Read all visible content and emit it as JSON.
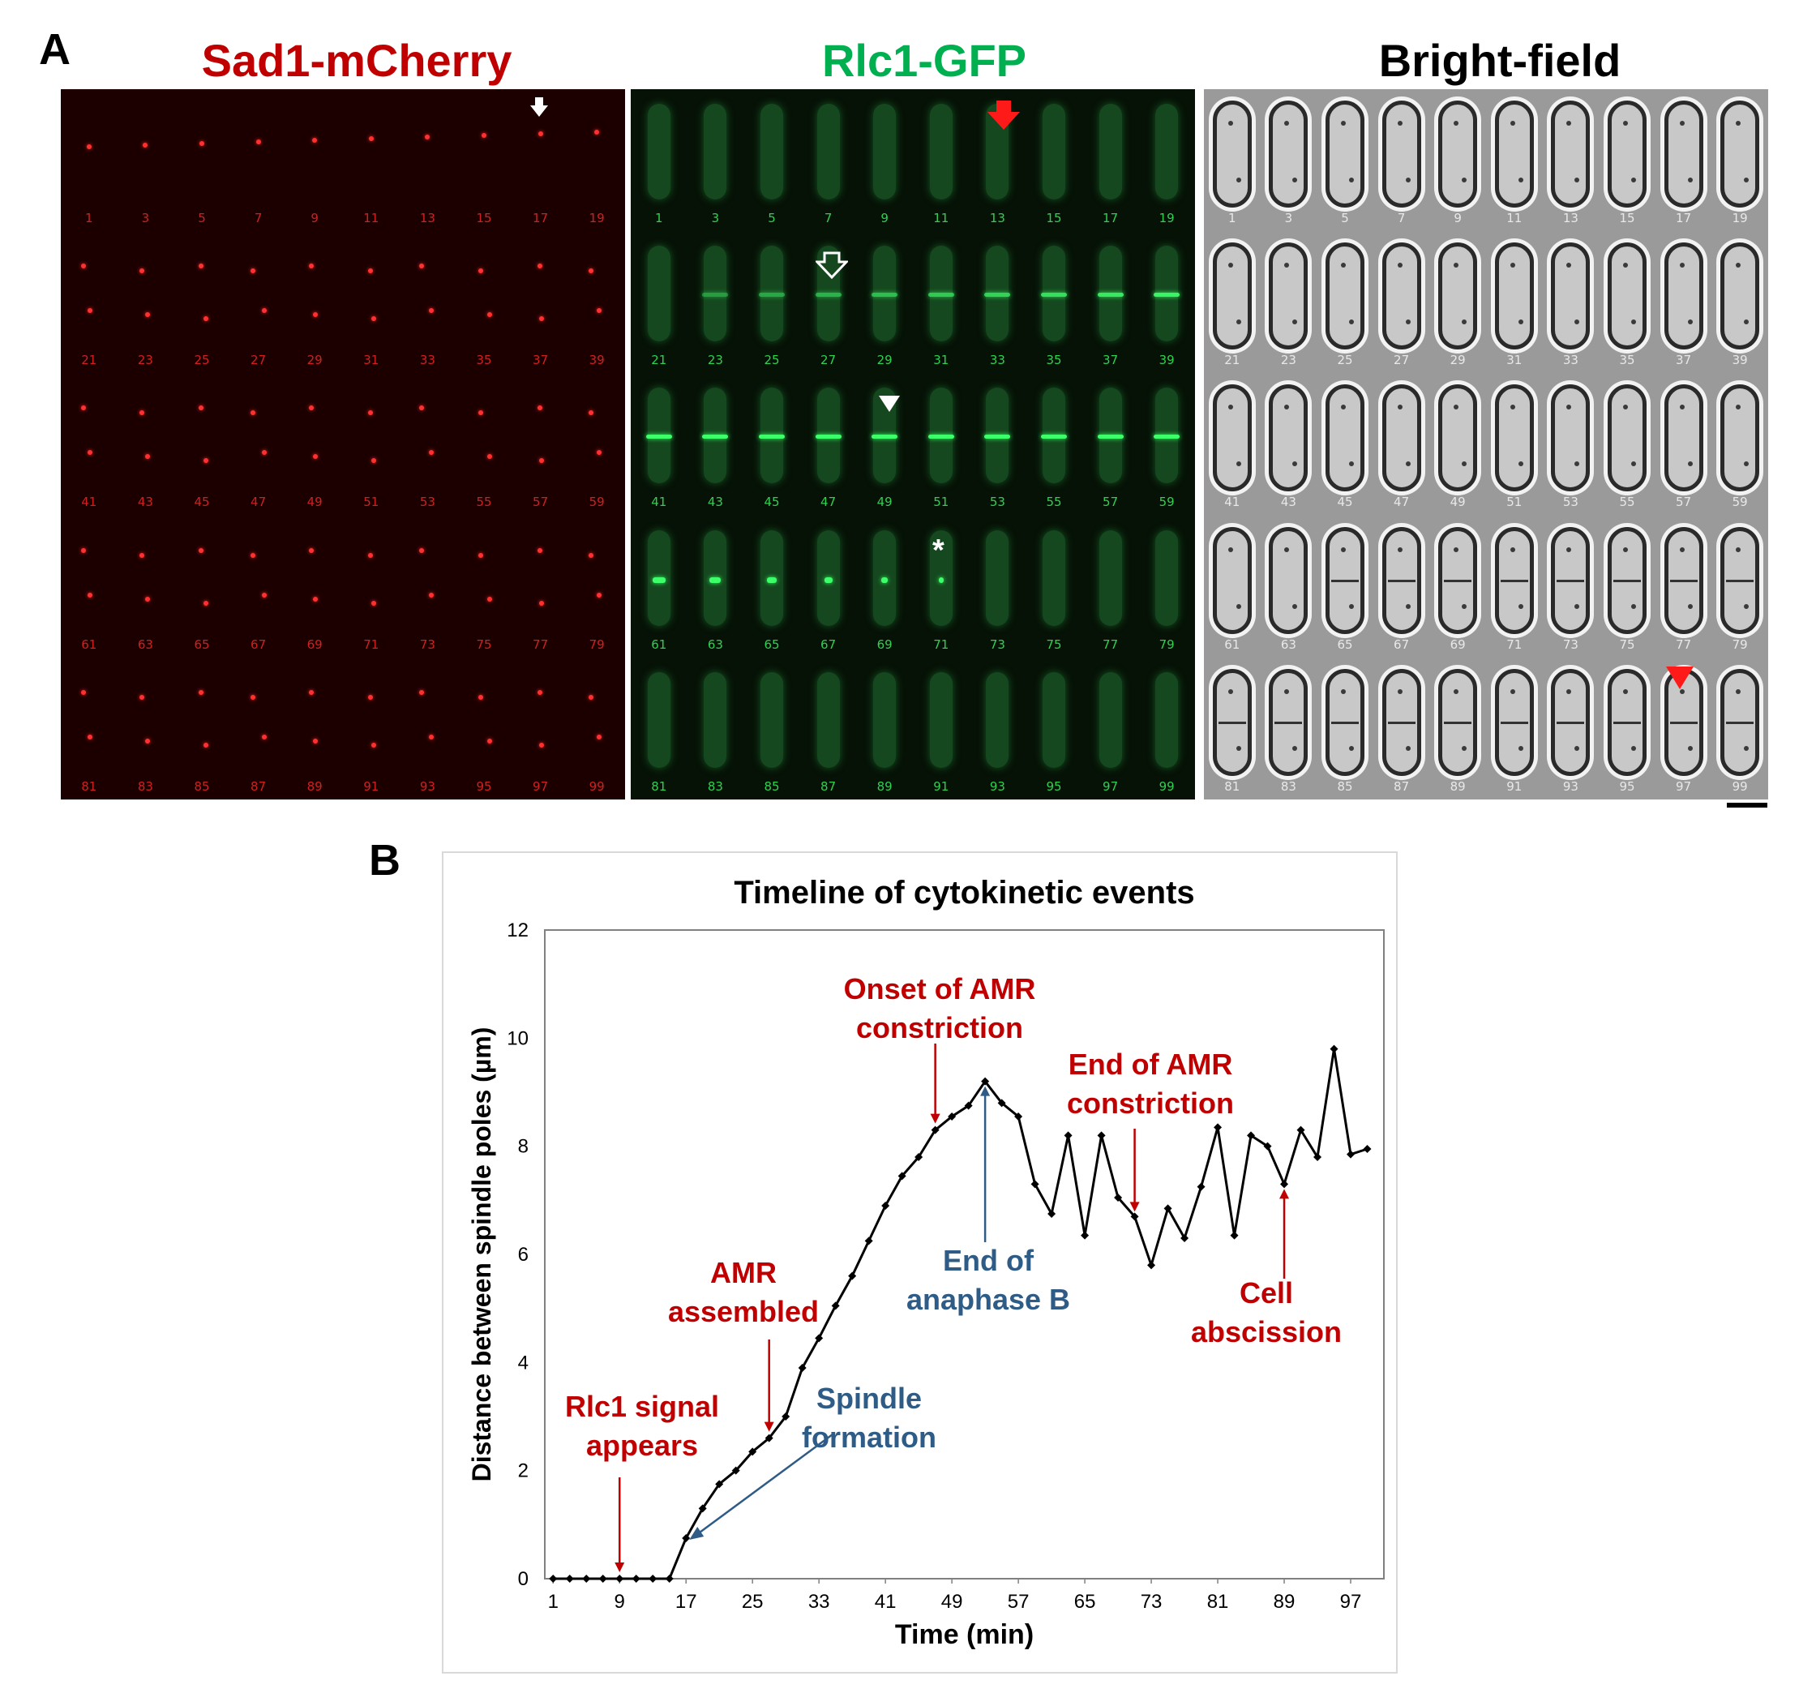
{
  "figure": {
    "panel_a_label": "A",
    "panel_b_label": "B"
  },
  "panel_a": {
    "columns": [
      {
        "title": "Sad1-mCherry",
        "color": "#c00000"
      },
      {
        "title": "Rlc1-GFP",
        "color": "#00b050"
      },
      {
        "title": "Bright-field",
        "color": "#000000"
      }
    ],
    "frame_numbers": [
      [
        "1",
        "3",
        "5",
        "7",
        "9",
        "11",
        "13",
        "15",
        "17",
        "19"
      ],
      [
        "21",
        "23",
        "25",
        "27",
        "29",
        "31",
        "33",
        "35",
        "37",
        "39"
      ],
      [
        "41",
        "43",
        "45",
        "47",
        "49",
        "51",
        "53",
        "55",
        "57",
        "59"
      ],
      [
        "61",
        "63",
        "65",
        "67",
        "69",
        "71",
        "73",
        "75",
        "77",
        "79"
      ],
      [
        "81",
        "83",
        "85",
        "87",
        "89",
        "91",
        "93",
        "95",
        "97",
        "99"
      ]
    ],
    "annotations": {
      "gfp_asterisk": "*"
    }
  },
  "chart_data": {
    "type": "line",
    "title": "Timeline of cytokinetic events",
    "xlabel": "Time (min)",
    "ylabel": "Distance between spindle poles (µm)",
    "ylim": [
      0,
      12
    ],
    "yticks": [
      "0",
      "2",
      "4",
      "6",
      "8",
      "10",
      "12"
    ],
    "xticks": [
      "1",
      "9",
      "17",
      "25",
      "33",
      "41",
      "49",
      "57",
      "65",
      "73",
      "81",
      "89",
      "97"
    ],
    "grid": false,
    "series": [
      {
        "name": "Distance between spindle poles",
        "x": [
          1,
          3,
          5,
          7,
          9,
          11,
          13,
          15,
          17,
          19,
          21,
          23,
          25,
          27,
          29,
          31,
          33,
          35,
          37,
          39,
          41,
          43,
          45,
          47,
          49,
          51,
          53,
          55,
          57,
          59,
          61,
          63,
          65,
          67,
          69,
          71,
          73,
          75,
          77,
          79,
          81,
          83,
          85,
          87,
          89,
          91,
          93,
          95,
          97,
          99
        ],
        "values": [
          0,
          0,
          0,
          0,
          0,
          0,
          0,
          0,
          0.75,
          1.3,
          1.75,
          2.0,
          2.35,
          2.6,
          3.0,
          3.9,
          4.45,
          5.05,
          5.6,
          6.25,
          6.9,
          7.45,
          7.8,
          8.3,
          8.55,
          8.75,
          9.2,
          8.8,
          8.55,
          7.3,
          6.75,
          8.2,
          6.35,
          8.2,
          7.05,
          6.7,
          5.8,
          6.85,
          6.3,
          7.25,
          8.35,
          6.35,
          8.2,
          8.0,
          7.3,
          8.3,
          7.8,
          9.8,
          7.85,
          7.95
        ]
      }
    ],
    "event_annotations": [
      {
        "label": "Rlc1 signal appears",
        "line1": "Rlc1 signal",
        "line2": "appears",
        "x": 9,
        "color": "#c00000"
      },
      {
        "label": "AMR assembled",
        "line1": "AMR",
        "line2": "assembled",
        "x": 27,
        "color": "#c00000"
      },
      {
        "label": "Onset of AMR constriction",
        "line1": "Onset of AMR",
        "line2": "constriction",
        "x": 47,
        "color": "#c00000"
      },
      {
        "label": "End of AMR constriction",
        "line1": "End of AMR",
        "line2": "constriction",
        "x": 71,
        "color": "#c00000"
      },
      {
        "label": "Cell abscission",
        "line1": "Cell",
        "line2": "abscission",
        "x": 89,
        "color": "#c00000"
      },
      {
        "label": "Spindle formation",
        "line1": "Spindle",
        "line2": "formation",
        "x": 17,
        "color": "#2e5c86"
      },
      {
        "label": "End of anaphase B",
        "line1": "End of",
        "line2": "anaphase B",
        "x": 53,
        "color": "#2e5c86"
      }
    ]
  }
}
